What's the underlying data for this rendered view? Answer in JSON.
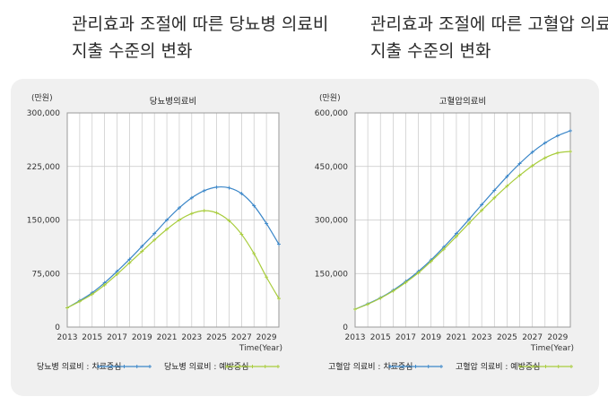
{
  "headings": {
    "left": [
      "관리효과 조절에 따른 당뇨병 의료비",
      "지출 수준의 변화"
    ],
    "right": [
      "관리효과 조절에 따른 고혈압 의료비",
      "지출 수준의 변화"
    ]
  },
  "colors": {
    "treatment": "#3a86c8",
    "prevention": "#a8cc3c",
    "grid": "#c8c8c8",
    "axis": "#9a9a9a"
  },
  "chart_data": [
    {
      "type": "line",
      "title": "당뇨병의료비",
      "unit_label": "(만원)",
      "xlabel": "Time(Year)",
      "ylim": [
        0,
        300000
      ],
      "xlim": [
        2013,
        2030
      ],
      "y_ticks": [
        "0",
        "75,000",
        "150,000",
        "225,000",
        "300,000"
      ],
      "x_ticks": [
        "2013",
        "2015",
        "2017",
        "2019",
        "2021",
        "2023",
        "2025",
        "2027",
        "2029"
      ],
      "grid": true,
      "legend_position": "bottom",
      "series": [
        {
          "name": "당뇨병 의료비 : 치료중심",
          "x": [
            2013,
            2014,
            2015,
            2016,
            2017,
            2018,
            2019,
            2020,
            2021,
            2022,
            2023,
            2024,
            2025,
            2026,
            2027,
            2028,
            2029,
            2030
          ],
          "values": [
            27000,
            37000,
            48000,
            62000,
            78000,
            95000,
            113000,
            131000,
            150000,
            167000,
            181000,
            191000,
            196000,
            195000,
            187000,
            170000,
            145000,
            116000
          ]
        },
        {
          "name": "당뇨병 의료비 : 예방중심",
          "x": [
            2013,
            2014,
            2015,
            2016,
            2017,
            2018,
            2019,
            2020,
            2021,
            2022,
            2023,
            2024,
            2025,
            2026,
            2027,
            2028,
            2029,
            2030
          ],
          "values": [
            27000,
            36000,
            46000,
            59000,
            74000,
            90000,
            106000,
            122000,
            137000,
            150000,
            159000,
            163000,
            160000,
            149000,
            130000,
            103000,
            70000,
            40000
          ]
        }
      ]
    },
    {
      "type": "line",
      "title": "고혈압의료비",
      "unit_label": "(만원)",
      "xlabel": "Time(Year)",
      "ylim": [
        0,
        600000
      ],
      "xlim": [
        2013,
        2030
      ],
      "y_ticks": [
        "0",
        "150,000",
        "300,000",
        "450,000",
        "600,000"
      ],
      "x_ticks": [
        "2013",
        "2015",
        "2017",
        "2019",
        "2021",
        "2023",
        "2025",
        "2027",
        "2029"
      ],
      "grid": true,
      "legend_position": "bottom",
      "series": [
        {
          "name": "고혈압 의료비 : 치료중심",
          "x": [
            2013,
            2014,
            2015,
            2016,
            2017,
            2018,
            2019,
            2020,
            2021,
            2022,
            2023,
            2024,
            2025,
            2026,
            2027,
            2028,
            2029,
            2030
          ],
          "values": [
            50000,
            65000,
            82000,
            103000,
            128000,
            156000,
            188000,
            224000,
            262000,
            302000,
            343000,
            383000,
            422000,
            458000,
            490000,
            516000,
            536000,
            550000
          ]
        },
        {
          "name": "고혈압 의료비 : 예방중심",
          "x": [
            2013,
            2014,
            2015,
            2016,
            2017,
            2018,
            2019,
            2020,
            2021,
            2022,
            2023,
            2024,
            2025,
            2026,
            2027,
            2028,
            2029,
            2030
          ],
          "values": [
            50000,
            64000,
            81000,
            101000,
            125000,
            152000,
            184000,
            218000,
            254000,
            291000,
            327000,
            362000,
            395000,
            425000,
            452000,
            474000,
            488000,
            492000
          ]
        }
      ]
    }
  ]
}
